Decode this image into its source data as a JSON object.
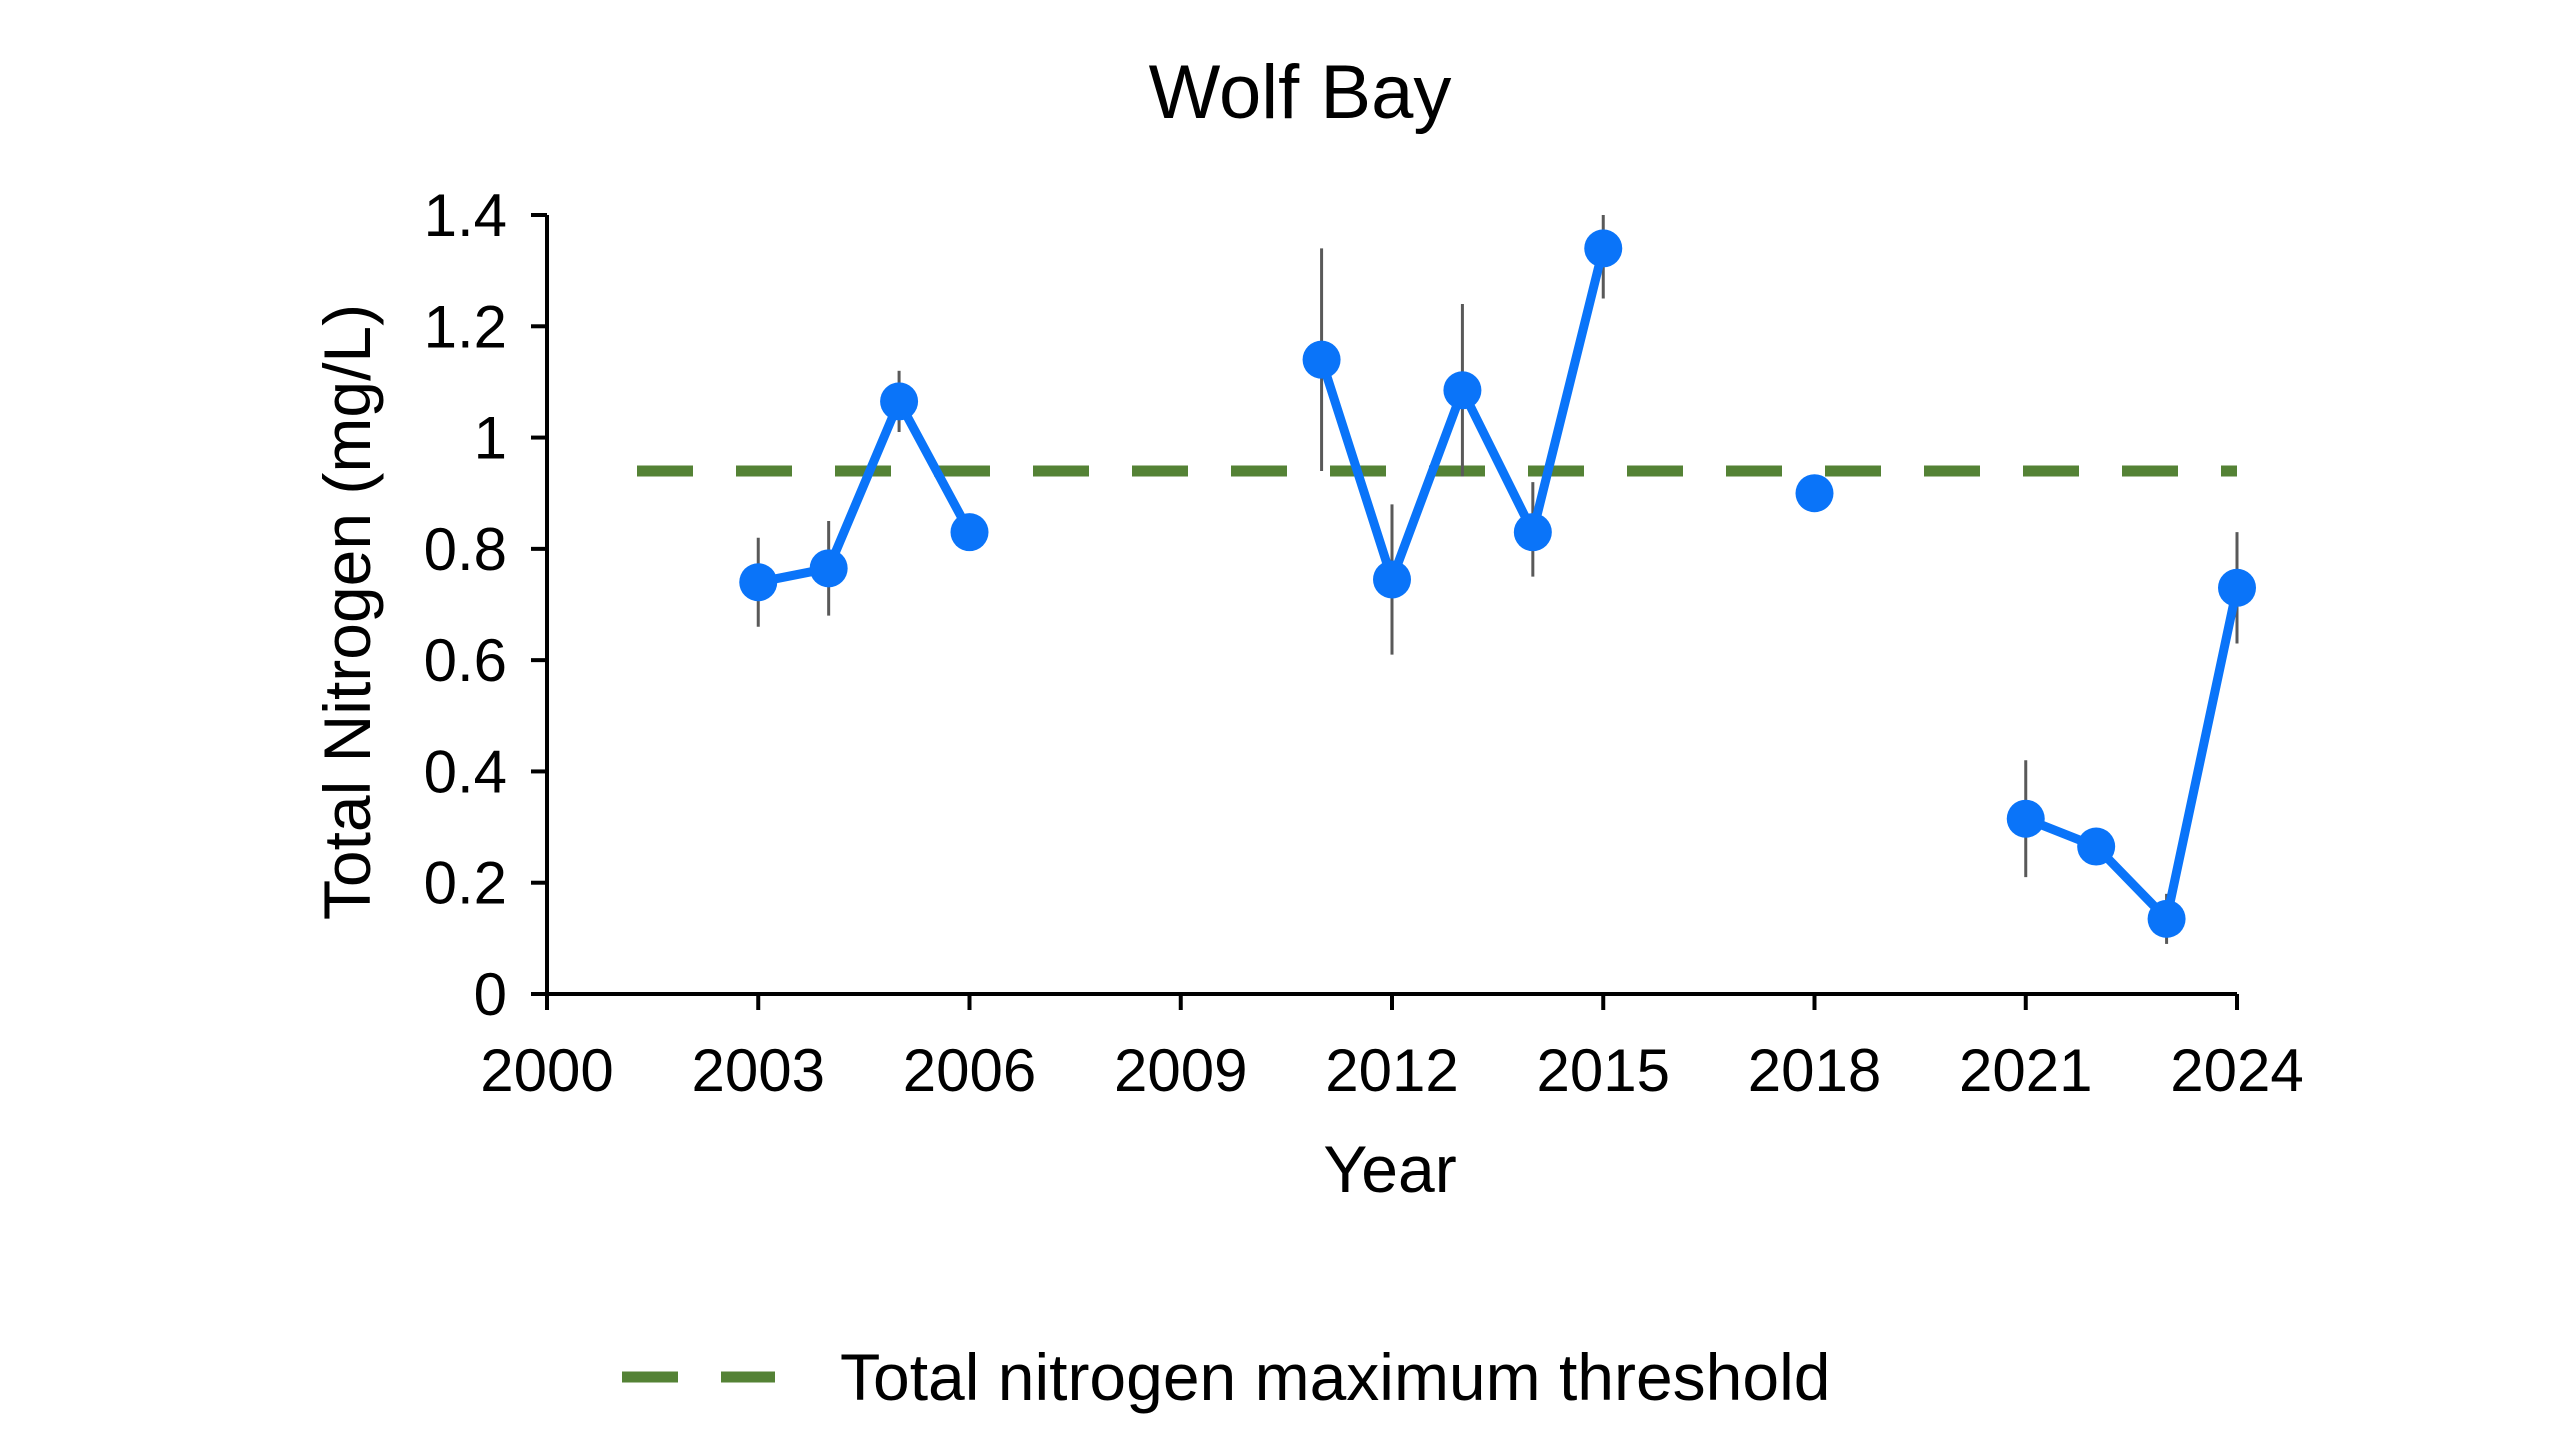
{
  "chart_data": {
    "type": "line",
    "title": "Wolf Bay",
    "xlabel": "Year",
    "ylabel": "Total Nitrogen (mg/L)",
    "xlim": [
      2000,
      2024
    ],
    "ylim": [
      0,
      1.4
    ],
    "xticks": [
      2000,
      2003,
      2006,
      2009,
      2012,
      2015,
      2018,
      2021,
      2024
    ],
    "yticks": [
      0,
      0.2,
      0.4,
      0.6,
      0.8,
      1,
      1.2,
      1.4
    ],
    "ytick_labels": [
      "0",
      "0.2",
      "0.4",
      "0.6",
      "0.8",
      "1",
      "1.2",
      "1.4"
    ],
    "grid": false,
    "colors": {
      "series": "#0a74f9",
      "threshold": "#548235",
      "error_bar": "#595959",
      "axis": "#000000"
    },
    "series": [
      {
        "type": "line-markers",
        "points": [
          {
            "x": 2003,
            "y": 0.74,
            "err_low": 0.66,
            "err_high": 0.82
          },
          {
            "x": 2004,
            "y": 0.765,
            "err_low": 0.68,
            "err_high": 0.85
          },
          {
            "x": 2005,
            "y": 1.065,
            "err_low": 1.01,
            "err_high": 1.12
          },
          {
            "x": 2006,
            "y": 0.83,
            "err_low": null,
            "err_high": null
          },
          {
            "x": 2007,
            "y": null
          },
          {
            "x": 2011,
            "y": 1.14,
            "err_low": 0.94,
            "err_high": 1.34
          },
          {
            "x": 2012,
            "y": 0.745,
            "err_low": 0.61,
            "err_high": 0.88
          },
          {
            "x": 2013,
            "y": 1.085,
            "err_low": 0.93,
            "err_high": 1.24
          },
          {
            "x": 2014,
            "y": 0.83,
            "err_low": 0.75,
            "err_high": 0.92
          },
          {
            "x": 2015,
            "y": 1.34,
            "err_low": 1.25,
            "err_high": 1.4
          },
          {
            "x": 2016,
            "y": null
          },
          {
            "x": 2018,
            "y": 0.9,
            "err_low": null,
            "err_high": null
          },
          {
            "x": 2019,
            "y": null
          },
          {
            "x": 2021,
            "y": 0.315,
            "err_low": 0.21,
            "err_high": 0.42
          },
          {
            "x": 2022,
            "y": 0.265,
            "err_low": null,
            "err_high": null
          },
          {
            "x": 2023,
            "y": 0.135,
            "err_low": 0.09,
            "err_high": 0.18
          },
          {
            "x": 2024,
            "y": 0.73,
            "err_low": 0.63,
            "err_high": 0.83
          }
        ]
      }
    ],
    "threshold": {
      "name": "Total nitrogen maximum threshold",
      "y": 0.94,
      "style": "dashed"
    },
    "legend": {
      "position": "bottom-center"
    }
  }
}
